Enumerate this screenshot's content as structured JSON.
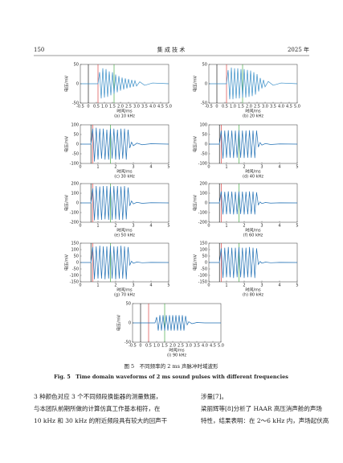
{
  "header": {
    "page": "150",
    "journal": "集 成 技 术",
    "year": "2025 年"
  },
  "figure": {
    "caption_cn": "图 5　不同频率的 2 ms 声脉冲时域波形",
    "caption_en": "Fig. 5　Time domain waveforms of 2 ms sound pulses with different frequencies",
    "charts": [
      {
        "type": "line",
        "caption": "(a) 10 kHz",
        "x_label": "时间/ms",
        "y_label": "电压/mV",
        "color": "#3a8fc8",
        "xlim": [
          -0.5,
          5
        ],
        "ylim": [
          -50,
          50
        ],
        "xticks": [
          -0.5,
          0,
          0.5,
          {
            "value": 1,
            "label": "1.0"
          },
          1.5,
          {
            "value": 2,
            "label": "2.0"
          },
          2.5,
          {
            "value": 3,
            "label": "3.0"
          },
          3.5,
          {
            "value": 4,
            "label": "4.0"
          },
          4.5,
          {
            "value": 5,
            "label": "5.0"
          }
        ],
        "yticks": [
          -50,
          0,
          50
        ],
        "markers": [
          {
            "x": 0,
            "color": "#000000"
          },
          {
            "x": 0.6,
            "color": "#d62728"
          },
          {
            "x": 1.6,
            "color": "#2ca02c"
          }
        ],
        "x": [
          -0.5,
          0.6,
          0.7,
          0.8,
          0.9,
          1.0,
          1.1,
          1.2,
          1.3,
          1.4,
          1.5,
          1.6,
          1.7,
          1.8,
          1.9,
          2.0,
          2.1,
          2.2,
          2.3,
          2.4,
          2.5,
          2.6,
          2.7,
          2.8,
          2.9,
          3.0,
          3.2,
          3.5,
          4.0,
          5.0
        ],
        "values": [
          0,
          0,
          30,
          -38,
          40,
          -36,
          38,
          -34,
          32,
          -30,
          30,
          -26,
          24,
          -22,
          20,
          -18,
          16,
          -15,
          14,
          -12,
          12,
          -10,
          10,
          -8,
          8,
          -6,
          5,
          -4,
          2,
          0
        ]
      },
      {
        "type": "line",
        "caption": "(b) 20 kHz",
        "x_label": "时间/ms",
        "y_label": "电压/mV",
        "color": "#3a8fc8",
        "xlim": [
          -0.5,
          5
        ],
        "ylim": [
          -50,
          50
        ],
        "xticks": [
          -0.5,
          0,
          0.5,
          {
            "value": 1,
            "label": "1.0"
          },
          1.5,
          {
            "value": 2,
            "label": "2.0"
          },
          2.5,
          {
            "value": 3,
            "label": "3.0"
          },
          3.5,
          {
            "value": 4,
            "label": "4.0"
          },
          4.5,
          {
            "value": 5,
            "label": "5.0"
          }
        ],
        "yticks": [
          -50,
          0,
          50
        ],
        "markers": [
          {
            "x": 0,
            "color": "#000000"
          },
          {
            "x": 0.6,
            "color": "#d62728"
          },
          {
            "x": 1.6,
            "color": "#2ca02c"
          }
        ],
        "x": [
          -0.5,
          0.6,
          0.7,
          0.8,
          0.9,
          1.0,
          1.1,
          1.2,
          1.3,
          1.4,
          1.5,
          1.6,
          1.7,
          1.8,
          1.9,
          2.0,
          2.1,
          2.2,
          2.3,
          2.4,
          2.5,
          2.6,
          2.7,
          2.8,
          2.9,
          3.0,
          3.2,
          3.5,
          4.0,
          5.0
        ],
        "values": [
          0,
          0,
          35,
          -40,
          42,
          -40,
          40,
          -38,
          40,
          -38,
          38,
          -36,
          38,
          -36,
          36,
          -34,
          34,
          -32,
          30,
          -28,
          25,
          -20,
          15,
          -12,
          10,
          -8,
          6,
          -4,
          2,
          0
        ]
      },
      {
        "type": "line",
        "caption": "(c) 30 kHz",
        "x_label": "时间/ms",
        "y_label": "电压/mV",
        "color": "#1f6fb4",
        "xlim": [
          0,
          5
        ],
        "ylim": [
          -100,
          100
        ],
        "xticks": [
          0,
          1,
          2,
          3,
          4,
          5
        ],
        "yticks": [
          -100,
          -50,
          0,
          50,
          100
        ],
        "markers": [
          {
            "x": 0.6,
            "color": "#000000"
          },
          {
            "x": 0.7,
            "color": "#d62728"
          },
          {
            "x": 1.7,
            "color": "#2ca02c"
          }
        ],
        "x": [
          0,
          0.6,
          0.7,
          0.8,
          0.9,
          1.0,
          1.1,
          1.2,
          1.3,
          1.4,
          1.5,
          1.6,
          1.7,
          1.8,
          1.9,
          2.0,
          2.1,
          2.2,
          2.3,
          2.4,
          2.5,
          2.6,
          2.7,
          2.8,
          2.9,
          3.0,
          3.2,
          3.5,
          4.0,
          5.0
        ],
        "values": [
          0,
          0,
          80,
          -90,
          85,
          -80,
          80,
          -75,
          80,
          -80,
          75,
          -80,
          80,
          -75,
          80,
          -80,
          75,
          -80,
          80,
          -75,
          80,
          -80,
          75,
          -20,
          10,
          -8,
          5,
          -3,
          2,
          0
        ]
      },
      {
        "type": "line",
        "caption": "(d) 40 kHz",
        "x_label": "时间/ms",
        "y_label": "电压/mV",
        "color": "#1f6fb4",
        "xlim": [
          0,
          5
        ],
        "ylim": [
          -100,
          100
        ],
        "xticks": [
          0,
          1,
          2,
          3,
          4,
          5
        ],
        "yticks": [
          -100,
          -50,
          0,
          50,
          100
        ],
        "markers": [
          {
            "x": 0.6,
            "color": "#000000"
          },
          {
            "x": 0.7,
            "color": "#d62728"
          },
          {
            "x": 1.7,
            "color": "#2ca02c"
          }
        ],
        "x": [
          0,
          0.6,
          0.7,
          0.8,
          0.9,
          1.0,
          1.1,
          1.2,
          1.3,
          1.4,
          1.5,
          1.6,
          1.7,
          1.8,
          1.9,
          2.0,
          2.1,
          2.2,
          2.3,
          2.4,
          2.5,
          2.6,
          2.7,
          2.8,
          2.9,
          3.0,
          3.2,
          3.5,
          4.0,
          5.0
        ],
        "values": [
          0,
          0,
          70,
          -75,
          70,
          -70,
          72,
          -70,
          70,
          -72,
          70,
          -70,
          72,
          -70,
          70,
          -72,
          70,
          -70,
          72,
          -70,
          70,
          -72,
          70,
          -15,
          8,
          -5,
          3,
          -2,
          1,
          0
        ]
      },
      {
        "type": "line",
        "caption": "(e) 50 kHz",
        "x_label": "时间/ms",
        "y_label": "电压/mV",
        "color": "#1f6fb4",
        "xlim": [
          0,
          5
        ],
        "ylim": [
          -200,
          200
        ],
        "xticks": [
          0,
          1,
          2,
          3,
          4,
          5
        ],
        "yticks": [
          -200,
          -100,
          0,
          100,
          200
        ],
        "markers": [
          {
            "x": 0.6,
            "color": "#000000"
          },
          {
            "x": 0.7,
            "color": "#d62728"
          },
          {
            "x": 1.7,
            "color": "#2ca02c"
          }
        ],
        "x": [
          0,
          0.6,
          0.7,
          0.8,
          0.9,
          1.0,
          1.1,
          1.2,
          1.3,
          1.4,
          1.5,
          1.6,
          1.7,
          1.8,
          1.9,
          2.0,
          2.1,
          2.2,
          2.3,
          2.4,
          2.5,
          2.6,
          2.7,
          2.8,
          2.9,
          3.0,
          3.2,
          3.5,
          4.0,
          5.0
        ],
        "values": [
          0,
          0,
          150,
          -180,
          175,
          -175,
          170,
          -175,
          175,
          -170,
          175,
          -175,
          170,
          -175,
          175,
          -170,
          175,
          -175,
          170,
          -175,
          175,
          -170,
          160,
          -30,
          20,
          -10,
          6,
          -4,
          2,
          0
        ]
      },
      {
        "type": "line",
        "caption": "(f) 60 kHz",
        "x_label": "时间/ms",
        "y_label": "电压/mV",
        "color": "#1f6fb4",
        "xlim": [
          0,
          5
        ],
        "ylim": [
          -200,
          200
        ],
        "xticks": [
          0,
          1,
          2,
          3,
          4,
          5
        ],
        "yticks": [
          -200,
          -100,
          0,
          100,
          200
        ],
        "markers": [
          {
            "x": 0.6,
            "color": "#000000"
          },
          {
            "x": 0.7,
            "color": "#d62728"
          },
          {
            "x": 1.7,
            "color": "#2ca02c"
          }
        ],
        "x": [
          0,
          0.6,
          0.7,
          0.8,
          0.9,
          1.0,
          1.1,
          1.2,
          1.3,
          1.4,
          1.5,
          1.6,
          1.7,
          1.8,
          1.9,
          2.0,
          2.1,
          2.2,
          2.3,
          2.4,
          2.5,
          2.6,
          2.7,
          2.8,
          2.9,
          3.0,
          3.2,
          3.5,
          4.0,
          5.0
        ],
        "values": [
          0,
          0,
          120,
          -120,
          115,
          -118,
          120,
          -115,
          118,
          -120,
          115,
          -118,
          120,
          -115,
          118,
          -120,
          115,
          -118,
          120,
          -115,
          118,
          -120,
          110,
          -20,
          10,
          -6,
          4,
          -2,
          1,
          0
        ]
      },
      {
        "type": "line",
        "caption": "(g) 70 kHz",
        "x_label": "时间/ms",
        "y_label": "电压/mV",
        "color": "#1f6fb4",
        "xlim": [
          0,
          5
        ],
        "ylim": [
          -150,
          150
        ],
        "xticks": [
          0,
          1,
          2,
          3,
          4,
          5
        ],
        "yticks": [
          -150,
          -100,
          -50,
          0,
          50,
          100,
          150
        ],
        "markers": [
          {
            "x": 0.6,
            "color": "#000000"
          },
          {
            "x": 0.7,
            "color": "#d62728"
          },
          {
            "x": 1.7,
            "color": "#2ca02c"
          }
        ],
        "x": [
          0,
          0.6,
          0.7,
          0.8,
          0.9,
          1.0,
          1.1,
          1.2,
          1.3,
          1.4,
          1.5,
          1.6,
          1.7,
          1.8,
          1.9,
          2.0,
          2.1,
          2.2,
          2.3,
          2.4,
          2.5,
          2.6,
          2.7,
          2.8,
          2.9,
          3.0,
          3.2,
          3.5,
          4.0,
          5.0
        ],
        "values": [
          0,
          0,
          120,
          -130,
          125,
          -125,
          130,
          -125,
          125,
          -130,
          125,
          -125,
          130,
          -125,
          125,
          -130,
          125,
          -125,
          130,
          -125,
          125,
          -130,
          120,
          -20,
          10,
          -6,
          4,
          -2,
          1,
          0
        ]
      },
      {
        "type": "line",
        "caption": "(h) 80 kHz",
        "x_label": "时间/ms",
        "y_label": "电压/mV",
        "color": "#1f6fb4",
        "xlim": [
          0,
          5
        ],
        "ylim": [
          -150,
          150
        ],
        "xticks": [
          0,
          1,
          2,
          3,
          4,
          5
        ],
        "yticks": [
          -150,
          -100,
          -50,
          0,
          50,
          100,
          150
        ],
        "markers": [
          {
            "x": 0.6,
            "color": "#000000"
          },
          {
            "x": 0.7,
            "color": "#d62728"
          },
          {
            "x": 1.7,
            "color": "#2ca02c"
          }
        ],
        "x": [
          0,
          0.6,
          0.7,
          0.8,
          0.9,
          1.0,
          1.1,
          1.2,
          1.3,
          1.4,
          1.5,
          1.6,
          1.7,
          1.8,
          1.9,
          2.0,
          2.1,
          2.2,
          2.3,
          2.4,
          2.5,
          2.6,
          2.7,
          2.8,
          2.9,
          3.0,
          3.2,
          3.5,
          4.0,
          5.0
        ],
        "values": [
          0,
          0,
          110,
          -120,
          115,
          -115,
          120,
          -115,
          115,
          -120,
          115,
          -115,
          120,
          -115,
          115,
          -120,
          115,
          -115,
          120,
          -115,
          115,
          -120,
          110,
          -15,
          8,
          -5,
          3,
          -2,
          1,
          0
        ]
      },
      {
        "type": "line",
        "caption": "(i) 90 kHz",
        "x_label": "时间/ms",
        "y_label": "电压/mV",
        "color": "#1f6fb4",
        "xlim": [
          -0.5,
          5
        ],
        "ylim": [
          -50,
          50
        ],
        "xticks": [
          -0.5,
          0,
          0.5,
          {
            "value": 1,
            "label": "1.0"
          },
          1.5,
          {
            "value": 2,
            "label": "2.0"
          },
          2.5,
          {
            "value": 3,
            "label": "3.0"
          },
          3.5,
          {
            "value": 4,
            "label": "4.0"
          },
          4.5,
          {
            "value": 5,
            "label": "5.0"
          }
        ],
        "yticks": [
          -50,
          0,
          50
        ],
        "markers": [
          {
            "x": 0,
            "color": "#000000"
          },
          {
            "x": 0.5,
            "color": "#d62728"
          },
          {
            "x": 1.5,
            "color": "#2ca02c"
          }
        ],
        "x": [
          -0.5,
          0.6,
          0.7,
          0.8,
          0.9,
          1.0,
          1.1,
          1.2,
          1.3,
          1.4,
          1.5,
          1.6,
          1.7,
          1.8,
          1.9,
          2.0,
          2.1,
          2.2,
          2.3,
          2.4,
          2.5,
          2.6,
          2.7,
          2.8,
          2.9,
          3.0,
          3.2,
          3.5,
          4.0,
          5.0
        ],
        "values": [
          0,
          0,
          0,
          0,
          0,
          15,
          -20,
          20,
          -20,
          20,
          -20,
          20,
          -20,
          20,
          -20,
          20,
          -20,
          20,
          -20,
          20,
          -20,
          20,
          -20,
          18,
          -5,
          3,
          -2,
          1,
          0,
          0
        ]
      }
    ]
  },
  "body": {
    "left": [
      "3 种颜色对应 3 个不同频段换能器的测量数据，",
      "与本团队前期所做的计算仿真工作基本相符，在",
      "10 kHz 和 30 kHz 的附近频段具有较大的回声干"
    ],
    "right": [
      "涉量[7]。",
      "梁丽辉等[8]分析了 HAAR 高压消声舱的声场",
      "特性，结果表明：在 2～6 kHz 内，声场起伏高"
    ]
  }
}
